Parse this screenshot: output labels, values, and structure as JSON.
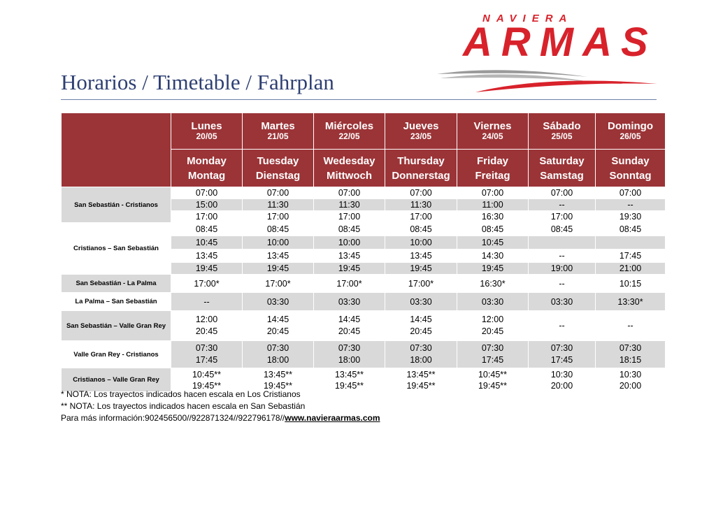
{
  "logo": {
    "top_text": "NAVIERA",
    "main_text": "ARMAS",
    "brand_color": "#d8222b"
  },
  "title": "Horarios / Timetable / Fahrplan",
  "colors": {
    "header_bg": "#9b3437",
    "row_gray": "#d9d9d9",
    "title_color": "#2e3f72"
  },
  "days": [
    {
      "es": "Lunes",
      "date": "20/05",
      "en": "Monday",
      "de": "Montag"
    },
    {
      "es": "Martes",
      "date": "21/05",
      "en": "Tuesday",
      "de": "Dienstag"
    },
    {
      "es": "Miércoles",
      "date": "22/05",
      "en": "Wedesday",
      "de": "Mittwoch"
    },
    {
      "es": "Jueves",
      "date": "23/05",
      "en": "Thursday",
      "de": "Donnerstag"
    },
    {
      "es": "Viernes",
      "date": "24/05",
      "en": "Friday",
      "de": "Freitag"
    },
    {
      "es": "Sábado",
      "date": "25/05",
      "en": "Saturday",
      "de": "Samstag"
    },
    {
      "es": "Domingo",
      "date": "26/05",
      "en": "Sunday",
      "de": "Sonntag"
    }
  ],
  "routes": [
    {
      "name": "San Sebastián - Cristianos",
      "rows": [
        [
          "07:00",
          "07:00",
          "07:00",
          "07:00",
          "07:00",
          "07:00",
          "07:00"
        ],
        [
          "15:00",
          "11:30",
          "11:30",
          "11:30",
          "11:00",
          "--",
          "--"
        ],
        [
          "17:00",
          "17:00",
          "17:00",
          "17:00",
          "16:30",
          "17:00",
          "19:30"
        ]
      ]
    },
    {
      "name": "Cristianos – San Sebastián",
      "rows": [
        [
          "08:45",
          "08:45",
          "08:45",
          "08:45",
          "08:45",
          "08:45",
          "08:45"
        ],
        [
          "10:45",
          "10:00",
          "10:00",
          "10:00",
          "10:45",
          "",
          ""
        ],
        [
          "13:45",
          "13:45",
          "13:45",
          "13:45",
          "14:30",
          "--",
          "17:45"
        ],
        [
          "19:45",
          "19:45",
          "19:45",
          "19:45",
          "19:45",
          "19:00",
          "21:00"
        ]
      ]
    },
    {
      "name": "San Sebastián - La Palma",
      "rows": [
        [
          "17:00*",
          "17:00*",
          "17:00*",
          "17:00*",
          "16:30*",
          "--",
          "10:15"
        ]
      ]
    },
    {
      "name": "La Palma – San Sebastián",
      "rows": [
        [
          "--",
          "03:30",
          "03:30",
          "03:30",
          "03:30",
          "03:30",
          "13:30*"
        ]
      ]
    },
    {
      "name": "San Sebastián – Valle Gran Rey",
      "rows": [
        [
          [
            "12:00",
            "20:45"
          ],
          [
            "14:45",
            "20:45"
          ],
          [
            "14:45",
            "20:45"
          ],
          [
            "14:45",
            "20:45"
          ],
          [
            "12:00",
            "20:45"
          ],
          [
            "--"
          ],
          [
            "--"
          ]
        ]
      ]
    },
    {
      "name": "Valle Gran Rey - Cristianos",
      "rows": [
        [
          [
            "07:30",
            "17:45"
          ],
          [
            "07:30",
            "18:00"
          ],
          [
            "07:30",
            "18:00"
          ],
          [
            "07:30",
            "18:00"
          ],
          [
            "07:30",
            "17:45"
          ],
          [
            "07:30",
            "17:45"
          ],
          [
            "07:30",
            "18:15"
          ]
        ]
      ]
    },
    {
      "name": "Cristianos – Valle Gran Rey",
      "rows": [
        [
          [
            "10:45**",
            "19:45**"
          ],
          [
            "13:45**",
            "19:45**"
          ],
          [
            "13:45**",
            "19:45**"
          ],
          [
            "13:45**",
            "19:45**"
          ],
          [
            "10:45**",
            "19:45**"
          ],
          [
            "10:30",
            "20:00"
          ],
          [
            "10:30",
            "20:00"
          ]
        ]
      ]
    }
  ],
  "notes": {
    "note1": "* NOTA: Los trayectos indicados hacen escala en Los Cristianos",
    "note2": "** NOTA: Los trayectos indicados hacen escala en San Sebastián",
    "info_prefix": "Para más información:902456500//922871324//922796178//",
    "info_link": "www.navieraarmas.com"
  }
}
